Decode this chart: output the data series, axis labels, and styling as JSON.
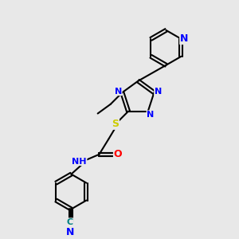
{
  "bg_color": "#e8e8e8",
  "bond_color": "#000000",
  "bond_width": 1.5,
  "atom_colors": {
    "N": "#0000ff",
    "O": "#ff0000",
    "S": "#cccc00",
    "C_nitrile": "#008080",
    "H": "#000000"
  },
  "font_size": 8,
  "fig_size": [
    3.0,
    3.0
  ],
  "dpi": 100
}
